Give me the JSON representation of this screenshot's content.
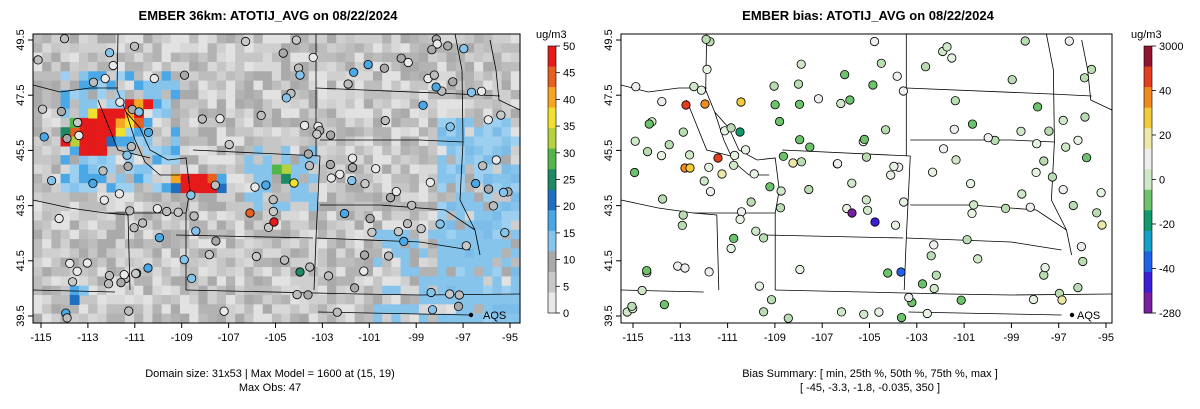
{
  "left_map": {
    "title": "EMBER 36km: ATOTIJ_AVG on 08/22/2024",
    "x_ticks": [
      "-115",
      "-113",
      "-111",
      "-109",
      "-107",
      "-105",
      "-103",
      "-101",
      "-99",
      "-97",
      "-95"
    ],
    "y_ticks": [
      "49.5",
      "47.5",
      "45.5",
      "43.5",
      "41.5",
      "39.5"
    ],
    "colorbar_unit": "ug/m3",
    "colorbar_ticks": [
      "50",
      "45",
      "40",
      "35",
      "30",
      "25",
      "20",
      "15",
      "10",
      "5",
      "0"
    ],
    "station_label": "AQS",
    "caption_line1": "Domain size: 31x53 | Max Model = 1600 at (15, 19)",
    "caption_line2": "Max Obs: 47"
  },
  "right_map": {
    "title": "EMBER bias: ATOTIJ_AVG on 08/22/2024",
    "x_ticks": [
      "-115",
      "-113",
      "-111",
      "-109",
      "-107",
      "-105",
      "-103",
      "-101",
      "-99",
      "-97",
      "-95"
    ],
    "y_ticks": [
      "49.5",
      "47.5",
      "45.5",
      "43.5",
      "41.5",
      "39.5"
    ],
    "colorbar_unit": "ug/m3",
    "colorbar_ticks": [
      "3000",
      "40",
      "20",
      "0",
      "-20",
      "-40",
      "-280"
    ],
    "station_label": "AQS",
    "caption_line1": "Bias Summary: [ min, 25th %, 50th %, 75th %, max ]",
    "caption_line2": "[ -45,  -3.3,  -1.8,  -0.035,  350 ]"
  },
  "colors": {
    "conc_scale": [
      "#e9e9e9",
      "#c8c8c8",
      "#a9a9a9",
      "#86c4ec",
      "#4aa8e6",
      "#1f6fc0",
      "#1d8a64",
      "#53b64a",
      "#b5d23e",
      "#f0e030",
      "#f5a623",
      "#e8601f",
      "#e51a1a"
    ],
    "bias_scale": [
      "#7a1fa0",
      "#3b1ed6",
      "#2063e8",
      "#17a1c9",
      "#119a6e",
      "#6cc36b",
      "#cfe8c8",
      "#eeeeee",
      "#eee8a8",
      "#f2cb3a",
      "#ef8c1f",
      "#e43d1f",
      "#8e1630"
    ]
  }
}
